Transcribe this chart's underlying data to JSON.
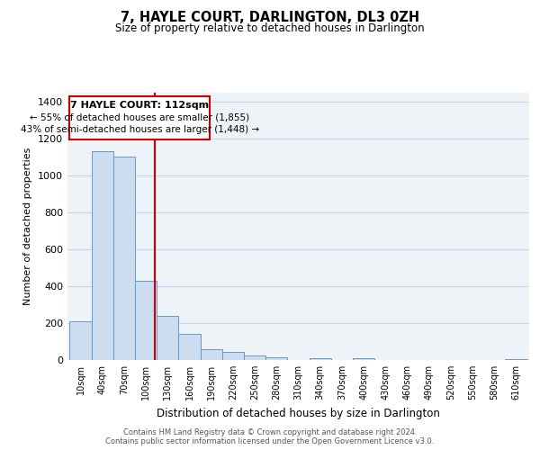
{
  "title": "7, HAYLE COURT, DARLINGTON, DL3 0ZH",
  "subtitle": "Size of property relative to detached houses in Darlington",
  "xlabel": "Distribution of detached houses by size in Darlington",
  "ylabel": "Number of detached properties",
  "bar_labels": [
    "10sqm",
    "40sqm",
    "70sqm",
    "100sqm",
    "130sqm",
    "160sqm",
    "190sqm",
    "220sqm",
    "250sqm",
    "280sqm",
    "310sqm",
    "340sqm",
    "370sqm",
    "400sqm",
    "430sqm",
    "460sqm",
    "490sqm",
    "520sqm",
    "550sqm",
    "580sqm",
    "610sqm"
  ],
  "bar_values": [
    210,
    1130,
    1100,
    430,
    240,
    140,
    60,
    45,
    22,
    14,
    0,
    8,
    0,
    10,
    0,
    0,
    0,
    0,
    0,
    0,
    6
  ],
  "bar_color": "#ccddf0",
  "bar_edge_color": "#6699cc",
  "vline_x": 112,
  "vline_color": "#cc0000",
  "ylim": [
    0,
    1450
  ],
  "yticks": [
    0,
    200,
    400,
    600,
    800,
    1000,
    1200,
    1400
  ],
  "annotation_title": "7 HAYLE COURT: 112sqm",
  "annotation_line1": "← 55% of detached houses are smaller (1,855)",
  "annotation_line2": "43% of semi-detached houses are larger (1,448) →",
  "annotation_box_edge": "#cc0000",
  "grid_color": "#c8d4e8",
  "plot_bg_color": "#eef3f8",
  "footer1": "Contains HM Land Registry data © Crown copyright and database right 2024.",
  "footer2": "Contains public sector information licensed under the Open Government Licence v3.0.",
  "bin_width": 30
}
